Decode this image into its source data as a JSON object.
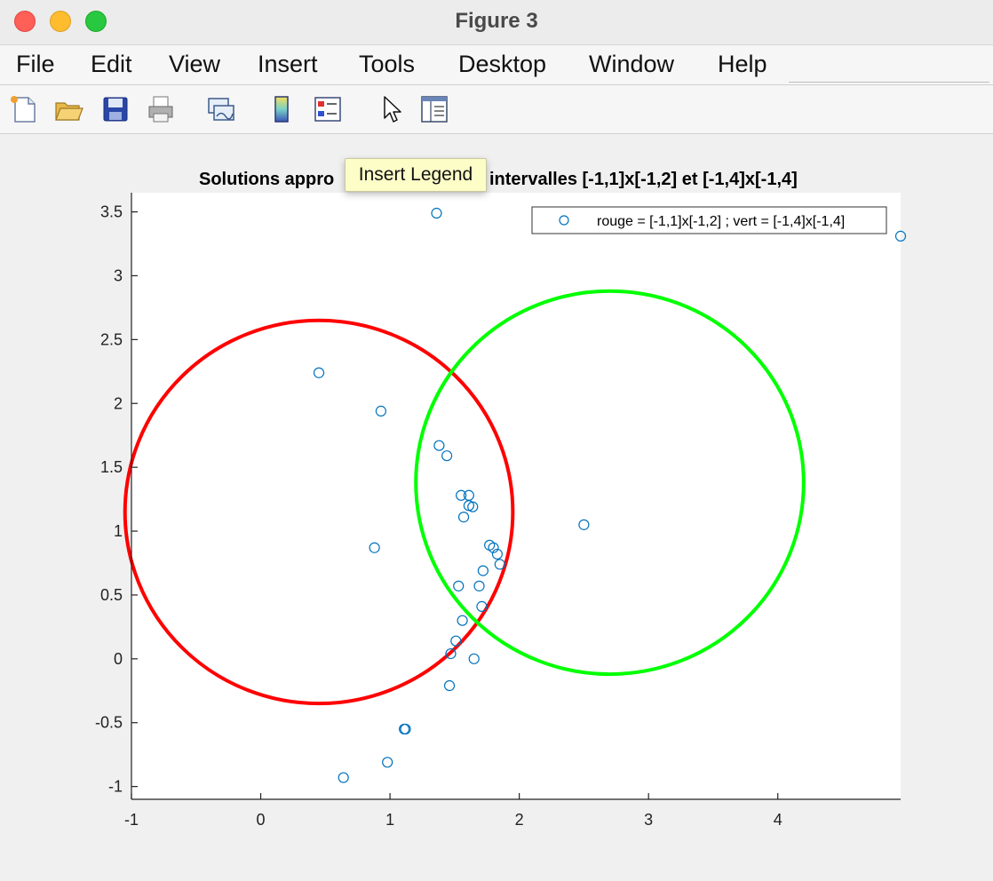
{
  "window": {
    "title": "Figure 3"
  },
  "menu": [
    "File",
    "Edit",
    "View",
    "Insert",
    "Tools",
    "Desktop",
    "Window",
    "Help"
  ],
  "toolbar_icons": [
    "new-figure-icon",
    "open-file-icon",
    "save-icon",
    "print-icon",
    "link-plot-icon",
    "insert-colorbar-icon",
    "insert-legend-icon",
    "edit-plot-icon",
    "property-inspector-icon"
  ],
  "tooltip": "Insert Legend",
  "chart_data": {
    "type": "scatter",
    "title_left": "Solutions appro",
    "title_right": "intervalles [-1,1]x[-1,2] et [-1,4]x[-1,4]",
    "xlim": [
      -1,
      4.95
    ],
    "ylim": [
      -1.1,
      3.65
    ],
    "xticks": [
      -1,
      0,
      1,
      2,
      3,
      4
    ],
    "yticks": [
      -1,
      -0.5,
      0,
      0.5,
      1,
      1.5,
      2,
      2.5,
      3,
      3.5
    ],
    "legend": {
      "label": "rouge = [-1,1]x[-1,2] ; vert = [-1,4]x[-1,4]",
      "location": "top-right"
    },
    "marker_color": "#0072bd",
    "circles": [
      {
        "color": "#ff0000",
        "cx": 0.45,
        "cy": 1.15,
        "r": 1.5
      },
      {
        "color": "#00ff00",
        "cx": 2.7,
        "cy": 1.38,
        "r": 1.5
      }
    ],
    "points": [
      [
        1.36,
        3.49
      ],
      [
        4.95,
        3.31
      ],
      [
        0.45,
        2.24
      ],
      [
        0.93,
        1.94
      ],
      [
        1.38,
        1.67
      ],
      [
        1.44,
        1.59
      ],
      [
        1.55,
        1.28
      ],
      [
        1.61,
        1.28
      ],
      [
        1.61,
        1.2
      ],
      [
        1.64,
        1.19
      ],
      [
        1.57,
        1.11
      ],
      [
        2.5,
        1.05
      ],
      [
        0.88,
        0.87
      ],
      [
        1.77,
        0.89
      ],
      [
        1.8,
        0.87
      ],
      [
        1.83,
        0.82
      ],
      [
        1.85,
        0.74
      ],
      [
        1.72,
        0.69
      ],
      [
        1.53,
        0.57
      ],
      [
        1.69,
        0.57
      ],
      [
        1.71,
        0.41
      ],
      [
        1.56,
        0.3
      ],
      [
        1.51,
        0.14
      ],
      [
        1.47,
        0.04
      ],
      [
        1.65,
        0.0
      ],
      [
        1.46,
        -0.21
      ],
      [
        1.11,
        -0.55
      ],
      [
        1.12,
        -0.55
      ],
      [
        0.98,
        -0.81
      ],
      [
        0.64,
        -0.93
      ]
    ]
  }
}
